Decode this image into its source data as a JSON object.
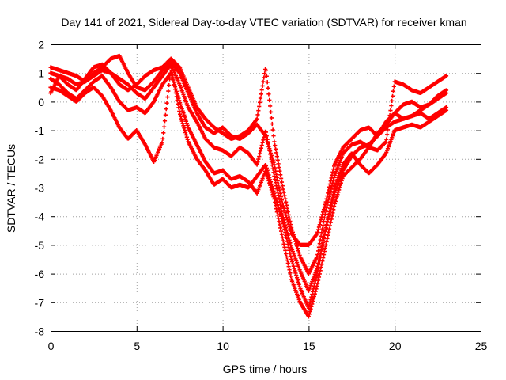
{
  "chart_data": {
    "type": "scatter",
    "title": "Day 141 of 2021, Sidereal Day-to-day VTEC variation (SDTVAR) for receiver kman",
    "xlabel": "GPS time / hours",
    "ylabel": "SDTVAR / TECUs",
    "xlim": [
      0,
      25
    ],
    "ylim": [
      -8,
      2
    ],
    "xticks": [
      "0",
      "5",
      "10",
      "15",
      "20",
      "25"
    ],
    "yticks": [
      "2",
      "1",
      "0",
      "-1",
      "-2",
      "-3",
      "-4",
      "-5",
      "-6",
      "-7",
      "-8"
    ],
    "grid": true,
    "marker": "plus",
    "color": "#ff0000",
    "series": [
      {
        "x": [
          0.0,
          0.5,
          1.0,
          1.5,
          2.0,
          2.5,
          3.0,
          3.5,
          4.0,
          4.5,
          5.0,
          5.5,
          6.0,
          6.5,
          7.0,
          7.5,
          8.0,
          8.5,
          9.0,
          9.5,
          10.0,
          10.5,
          11.0,
          11.5,
          12.0,
          12.5,
          13.0,
          13.5,
          14.0,
          14.5,
          15.0,
          15.5,
          16.0,
          16.5,
          17.0,
          17.5,
          18.0,
          18.5,
          19.0,
          19.5,
          20.0,
          20.5,
          21.0,
          21.5,
          22.0,
          22.5,
          23.0
        ],
        "y": [
          0.3,
          0.9,
          0.8,
          0.6,
          0.7,
          1.0,
          1.2,
          1.5,
          1.6,
          1.0,
          0.5,
          0.4,
          0.7,
          1.1,
          1.4,
          1.0,
          0.3,
          -0.4,
          -0.9,
          -1.1,
          -0.9,
          -1.2,
          -1.3,
          -1.1,
          -0.8,
          -1.2,
          -2.2,
          -3.6,
          -4.6,
          -5.0,
          -5.0,
          -4.6,
          -3.5,
          -2.2,
          -1.6,
          -1.3,
          -1.0,
          -0.9,
          -1.2,
          -0.7,
          -0.4,
          -0.6,
          -0.5,
          -0.3,
          -0.1,
          0.1,
          0.3
        ]
      },
      {
        "x": [
          0.0,
          0.5,
          1.0,
          1.5,
          2.0,
          2.5,
          3.0,
          3.5,
          4.0,
          4.5,
          5.0,
          5.5,
          6.0,
          6.5,
          7.0,
          7.5,
          8.0,
          8.5,
          9.0,
          9.5,
          10.0,
          10.5,
          11.0,
          11.5,
          12.0,
          12.5,
          13.0,
          13.5,
          14.0,
          14.5,
          15.0,
          15.5,
          16.0,
          16.5,
          17.0,
          17.5,
          18.0,
          18.5,
          19.0,
          19.5,
          20.0,
          20.5,
          21.0,
          21.5,
          22.0,
          22.5,
          23.0
        ],
        "y": [
          1.0,
          0.9,
          0.6,
          0.4,
          0.8,
          1.2,
          1.3,
          1.0,
          0.8,
          0.6,
          0.3,
          0.1,
          0.5,
          0.9,
          1.3,
          0.6,
          -0.2,
          -0.7,
          -1.3,
          -1.6,
          -1.7,
          -1.9,
          -1.6,
          -1.8,
          -2.2,
          -1.0,
          -2.6,
          -4.0,
          -5.1,
          -5.9,
          -6.6,
          -5.8,
          -4.4,
          -3.0,
          -2.2,
          -1.8,
          -2.2,
          -2.5,
          -2.2,
          -1.8,
          -1.0,
          -0.9,
          -0.8,
          -0.9,
          -0.7,
          -0.5,
          -0.3
        ]
      },
      {
        "x": [
          0.0,
          0.5,
          1.0,
          1.5,
          2.0,
          2.5,
          3.0,
          3.5,
          4.0,
          4.5,
          5.0,
          5.5,
          6.0,
          6.5,
          7.0,
          7.5,
          8.0,
          8.5,
          9.0,
          9.5,
          10.0,
          10.5,
          11.0,
          11.5,
          12.0,
          12.5,
          13.0,
          13.5,
          14.0,
          14.5,
          15.0,
          15.5,
          16.0,
          16.5,
          17.0,
          17.5,
          18.0,
          18.5,
          19.0,
          19.5,
          20.0,
          20.5,
          21.0,
          21.5,
          22.0,
          22.5,
          23.0
        ],
        "y": [
          0.8,
          0.6,
          0.3,
          0.1,
          0.4,
          0.7,
          0.9,
          0.5,
          0.0,
          -0.3,
          -0.2,
          -0.4,
          0.0,
          0.6,
          1.0,
          0.0,
          -0.9,
          -1.5,
          -2.1,
          -2.5,
          -2.4,
          -2.7,
          -2.6,
          -2.8,
          -3.2,
          -2.4,
          -3.4,
          -4.8,
          -6.2,
          -7.0,
          -7.5,
          -6.4,
          -5.0,
          -3.6,
          -2.6,
          -2.3,
          -2.0,
          -1.6,
          -1.1,
          -0.8,
          -0.4,
          -0.1,
          0.0,
          -0.2,
          -0.1,
          0.2,
          0.4
        ]
      },
      {
        "x": [
          0.0,
          0.5,
          1.0,
          1.5,
          2.0,
          2.5,
          3.0,
          3.5,
          4.0,
          4.5,
          5.0,
          5.5,
          6.0,
          6.5,
          7.0,
          7.5,
          8.0,
          8.5,
          9.0,
          9.5,
          10.0,
          10.5,
          11.0,
          11.5,
          12.0,
          12.5,
          13.0,
          13.5,
          14.0,
          14.5,
          15.0,
          15.5,
          16.0,
          16.5,
          17.0,
          17.5,
          18.0,
          18.5,
          19.0,
          19.5,
          20.0,
          20.5,
          21.0,
          21.5,
          22.0,
          22.5,
          23.0
        ],
        "y": [
          0.5,
          0.4,
          0.2,
          0.0,
          0.3,
          0.5,
          0.2,
          -0.3,
          -0.9,
          -1.3,
          -1.0,
          -1.5,
          -2.1,
          -1.4,
          1.2,
          -0.4,
          -1.4,
          -2.0,
          -2.4,
          -2.9,
          -2.7,
          -3.0,
          -2.9,
          -3.0,
          -2.6,
          -2.2,
          -3.2,
          -4.2,
          -5.5,
          -6.5,
          -7.2,
          -6.0,
          -4.4,
          -3.2,
          -2.4,
          -1.9,
          -1.6,
          -1.5,
          -1.2,
          -0.9,
          -0.7,
          -0.6,
          -0.5,
          -0.4,
          -0.6,
          -0.4,
          -0.2
        ]
      },
      {
        "x": [
          0.0,
          0.5,
          1.0,
          1.5,
          2.0,
          2.5,
          3.0,
          3.5,
          4.0,
          4.5,
          5.0,
          5.5,
          6.0,
          6.5,
          7.0,
          7.5,
          8.0,
          8.5,
          9.0,
          9.5,
          10.0,
          10.5,
          11.0,
          11.5,
          12.0,
          12.5,
          13.0,
          13.5,
          14.0,
          14.5,
          15.0,
          15.5,
          16.0,
          16.5,
          17.0,
          17.5,
          18.0,
          18.5,
          19.0,
          19.5,
          20.0,
          20.5,
          21.0,
          21.5,
          22.0,
          22.5,
          23.0
        ],
        "y": [
          1.2,
          1.1,
          1.0,
          0.9,
          0.7,
          0.9,
          1.1,
          1.0,
          0.6,
          0.4,
          0.6,
          0.9,
          1.1,
          1.2,
          1.5,
          1.2,
          0.5,
          -0.2,
          -0.6,
          -0.9,
          -1.1,
          -1.3,
          -1.2,
          -1.0,
          -0.6,
          1.2,
          -1.4,
          -3.0,
          -4.4,
          -5.4,
          -6.0,
          -5.4,
          -3.8,
          -2.6,
          -1.8,
          -1.5,
          -1.4,
          -1.6,
          -1.7,
          -1.4,
          0.7,
          0.6,
          0.4,
          0.3,
          0.5,
          0.7,
          0.9
        ]
      }
    ]
  }
}
